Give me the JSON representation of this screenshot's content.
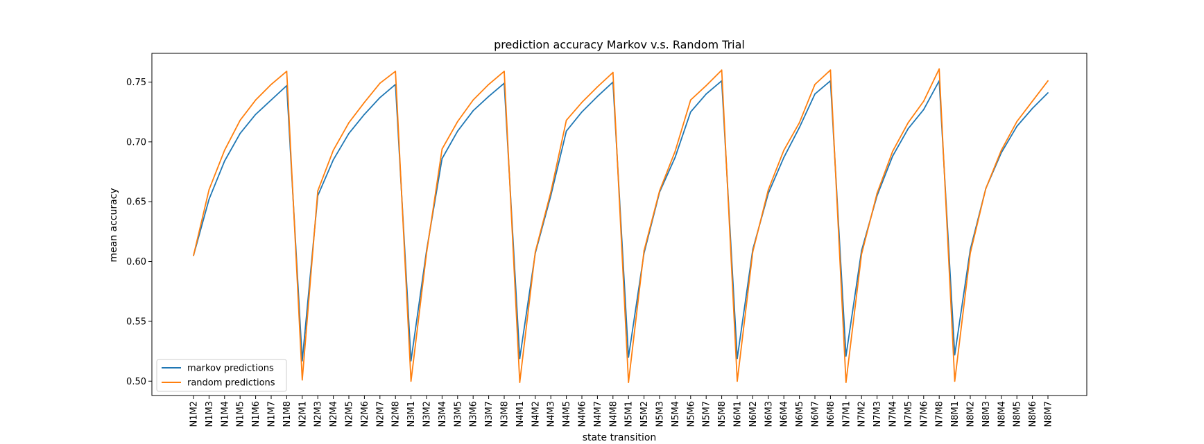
{
  "chart_data": {
    "type": "line",
    "title": "prediction accuracy Markov v.s. Random Trial",
    "xlabel": "state transition",
    "ylabel": "mean accuracy",
    "ylim": [
      0.488,
      0.774
    ],
    "yticks": [
      "0.50",
      "0.55",
      "0.60",
      "0.65",
      "0.70",
      "0.75"
    ],
    "grid": false,
    "legend_position": "lower left",
    "categories": [
      "N1M2",
      "N1M3",
      "N1M4",
      "N1M5",
      "N1M6",
      "N1M7",
      "N1M8",
      "N2M1",
      "N2M3",
      "N2M4",
      "N2M5",
      "N2M6",
      "N2M7",
      "N2M8",
      "N3M1",
      "N3M2",
      "N3M4",
      "N3M5",
      "N3M6",
      "N3M7",
      "N3M8",
      "N4M1",
      "N4M2",
      "N4M3",
      "N4M5",
      "N4M6",
      "N4M7",
      "N4M8",
      "N5M1",
      "N5M2",
      "N5M3",
      "N5M4",
      "N5M6",
      "N5M7",
      "N5M8",
      "N6M1",
      "N6M2",
      "N6M3",
      "N6M4",
      "N6M5",
      "N6M7",
      "N6M8",
      "N7M1",
      "N7M2",
      "N7M3",
      "N7M4",
      "N7M5",
      "N7M6",
      "N7M8",
      "N8M1",
      "N8M2",
      "N8M3",
      "N8M4",
      "N8M5",
      "N8M6",
      "N8M7"
    ],
    "series": [
      {
        "name": "markov predictions",
        "color": "#1f77b4",
        "values": [
          0.605,
          0.652,
          0.684,
          0.707,
          0.723,
          0.735,
          0.747,
          0.517,
          0.655,
          0.685,
          0.707,
          0.723,
          0.737,
          0.748,
          0.517,
          0.609,
          0.686,
          0.709,
          0.726,
          0.738,
          0.749,
          0.519,
          0.607,
          0.655,
          0.709,
          0.725,
          0.738,
          0.75,
          0.52,
          0.607,
          0.658,
          0.687,
          0.725,
          0.74,
          0.751,
          0.519,
          0.61,
          0.657,
          0.687,
          0.712,
          0.74,
          0.751,
          0.521,
          0.609,
          0.655,
          0.688,
          0.711,
          0.727,
          0.751,
          0.522,
          0.61,
          0.661,
          0.691,
          0.713,
          0.728,
          0.741
        ]
      },
      {
        "name": "random predictions",
        "color": "#ff7f0e",
        "values": [
          0.605,
          0.66,
          0.693,
          0.718,
          0.735,
          0.748,
          0.759,
          0.501,
          0.659,
          0.693,
          0.716,
          0.733,
          0.749,
          0.759,
          0.5,
          0.607,
          0.694,
          0.717,
          0.735,
          0.748,
          0.759,
          0.499,
          0.608,
          0.658,
          0.718,
          0.733,
          0.746,
          0.758,
          0.499,
          0.609,
          0.659,
          0.692,
          0.735,
          0.747,
          0.76,
          0.5,
          0.608,
          0.66,
          0.693,
          0.716,
          0.748,
          0.76,
          0.499,
          0.606,
          0.657,
          0.692,
          0.716,
          0.734,
          0.761,
          0.5,
          0.607,
          0.661,
          0.693,
          0.717,
          0.734,
          0.751
        ]
      }
    ]
  }
}
